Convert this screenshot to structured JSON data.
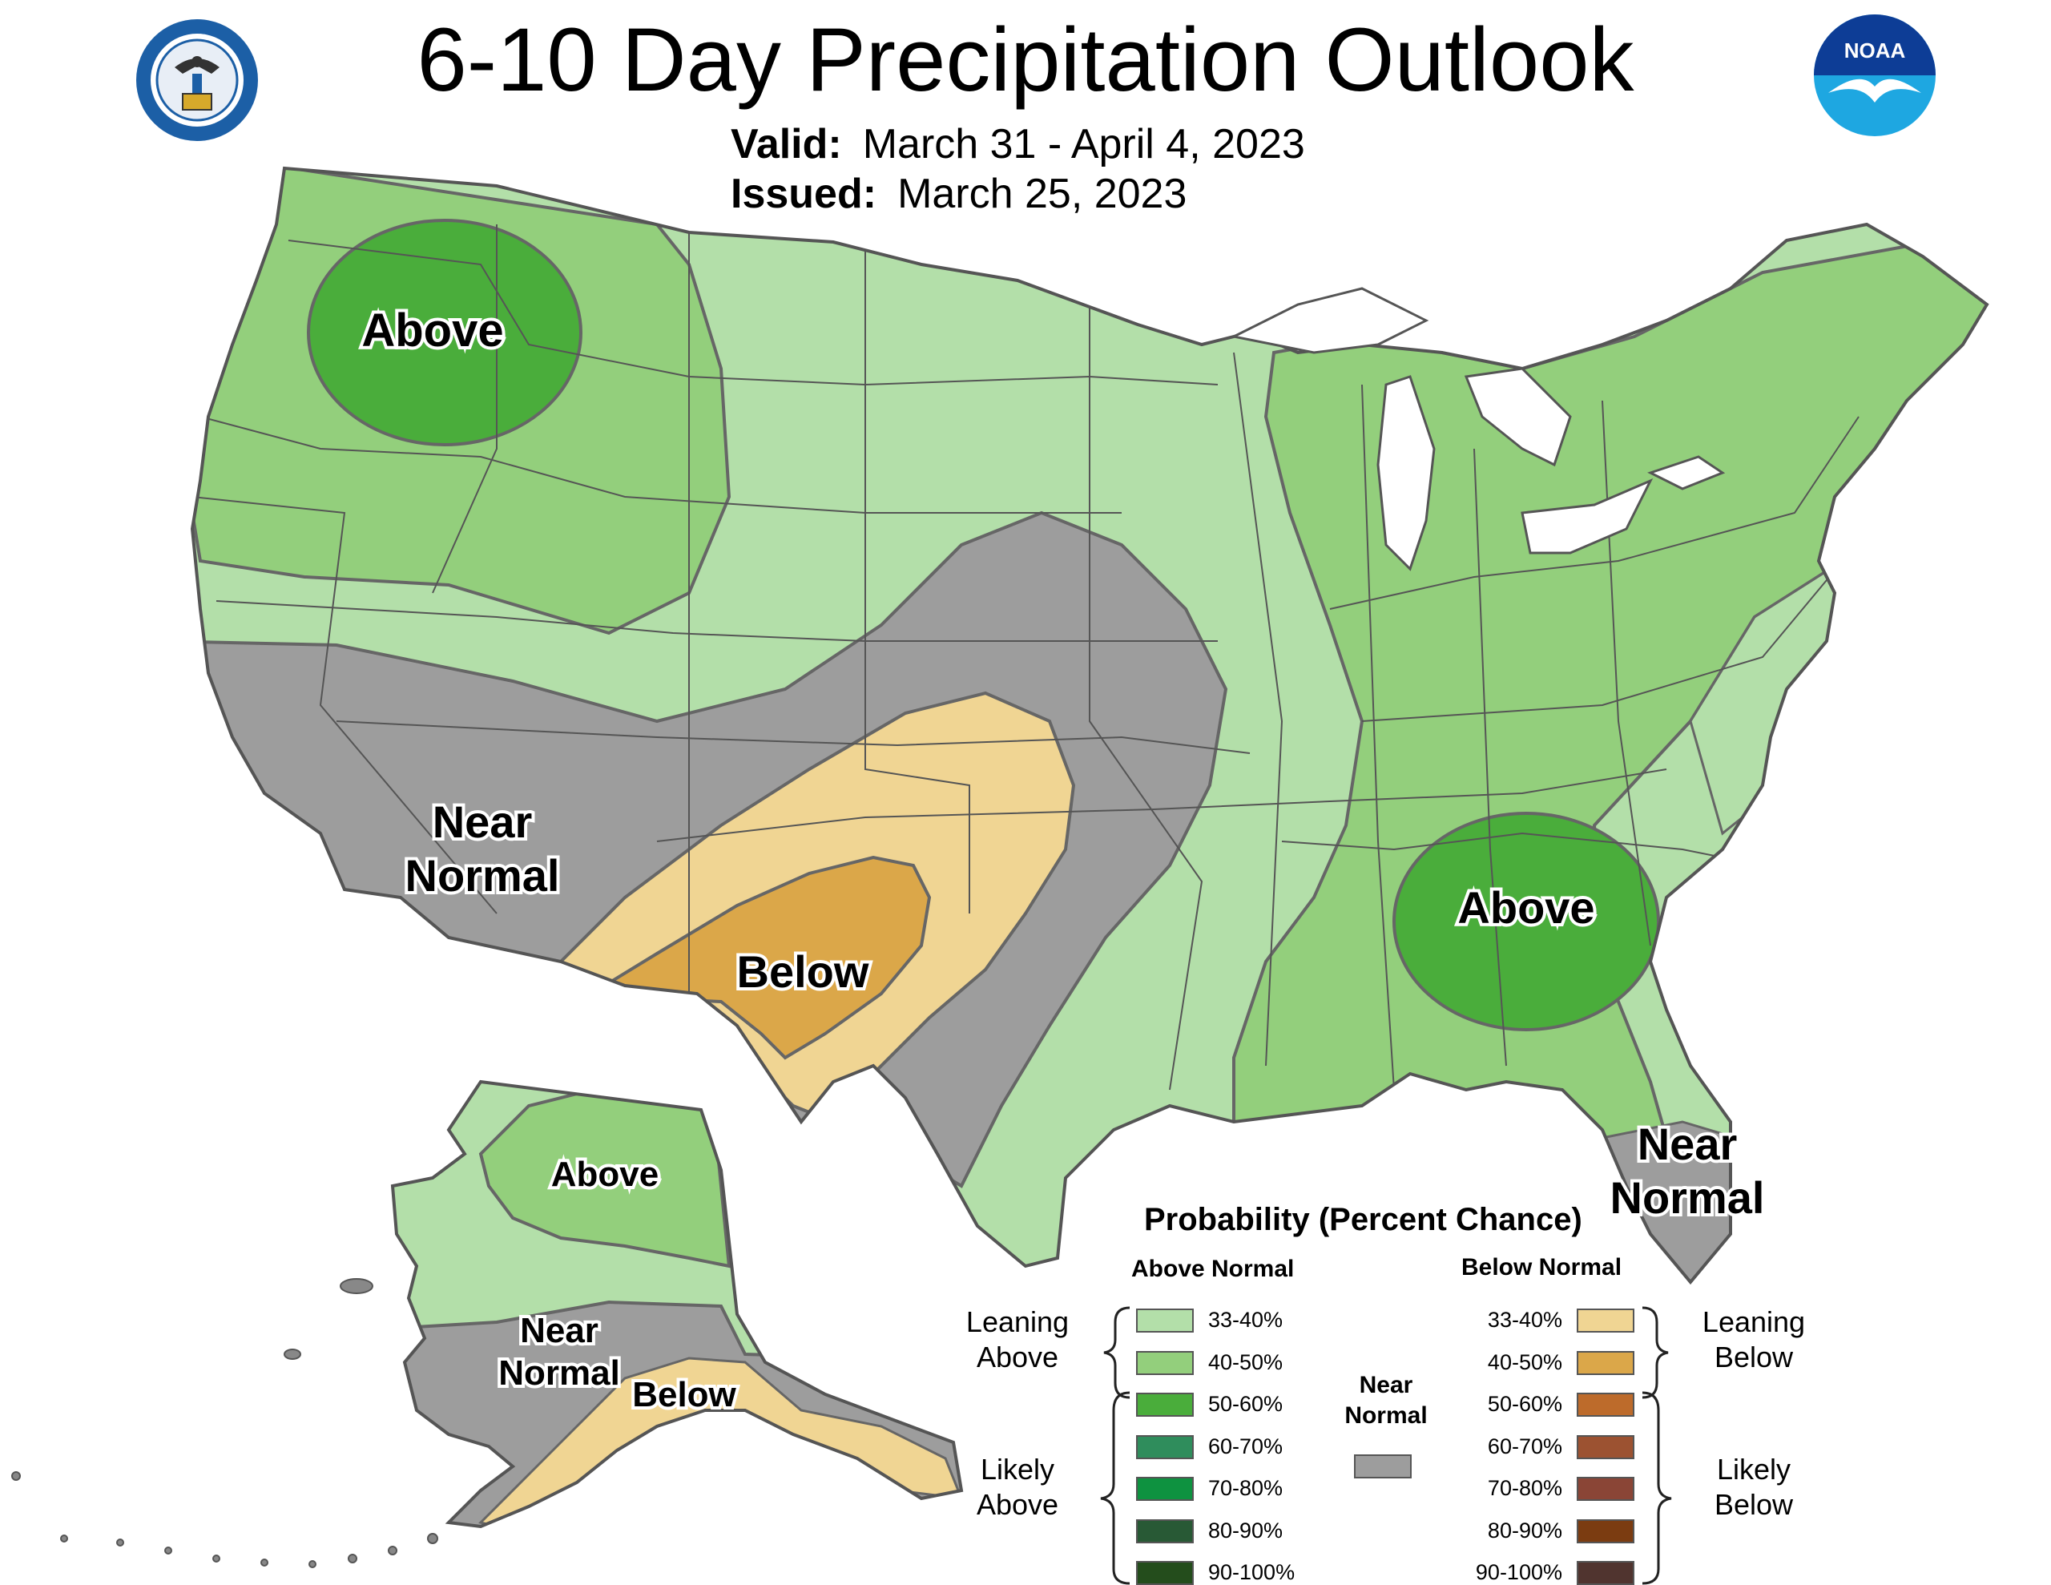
{
  "title": "6-10 Day Precipitation Outlook",
  "valid_label": "Valid:",
  "valid_value": "March 31 - April 4, 2023",
  "issued_label": "Issued:",
  "issued_value": "March 25, 2023",
  "logos": {
    "left": "department-of-commerce-seal",
    "right": "noaa-logo",
    "noaa_text": "NOAA"
  },
  "map_labels": {
    "nw_above": "Above",
    "sw_near_1": "Near",
    "sw_near_2": "Normal",
    "below": "Below",
    "se_above": "Above",
    "fl_near_1": "Near",
    "fl_near_2": "Normal",
    "ak_above": "Above",
    "ak_near_1": "Near",
    "ak_near_2": "Normal",
    "ak_below": "Below"
  },
  "legend": {
    "title": "Probability (Percent Chance)",
    "above_header": "Above Normal",
    "below_header": "Below Normal",
    "leaning_above": [
      "Leaning",
      "Above"
    ],
    "likely_above": [
      "Likely",
      "Above"
    ],
    "leaning_below": [
      "Leaning",
      "Below"
    ],
    "likely_below": [
      "Likely",
      "Below"
    ],
    "near_normal": [
      "Near",
      "Normal"
    ],
    "near_color": "#9d9d9d",
    "above": [
      {
        "label": "33-40%",
        "color": "#b3dfa9"
      },
      {
        "label": "40-50%",
        "color": "#93cf7c"
      },
      {
        "label": "50-60%",
        "color": "#4aad3b"
      },
      {
        "label": "60-70%",
        "color": "#2f8d5c"
      },
      {
        "label": "70-80%",
        "color": "#0e9240"
      },
      {
        "label": "80-90%",
        "color": "#285935"
      },
      {
        "label": "90-100%",
        "color": "#244d1c"
      }
    ],
    "below": [
      {
        "label": "33-40%",
        "color": "#f0d593"
      },
      {
        "label": "40-50%",
        "color": "#dba749"
      },
      {
        "label": "50-60%",
        "color": "#bd6b2b"
      },
      {
        "label": "60-70%",
        "color": "#9c5231"
      },
      {
        "label": "70-80%",
        "color": "#8a4536"
      },
      {
        "label": "80-90%",
        "color": "#7b3c11"
      },
      {
        "label": "90-100%",
        "color": "#50342f"
      }
    ]
  }
}
